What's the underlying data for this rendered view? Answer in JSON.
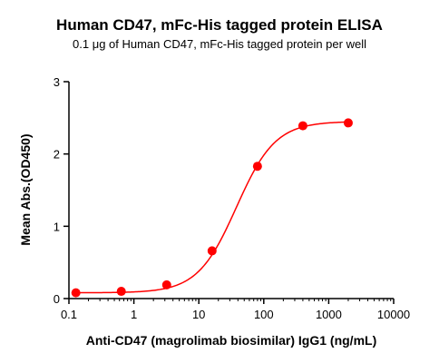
{
  "chart_data": {
    "type": "scatter",
    "title": "Human CD47, mFc-His tagged protein ELISA",
    "subtitle": "0.1 μg of Human CD47, mFc-His tagged protein per well",
    "xlabel": "Anti-CD47 (magrolimab biosimilar) IgG1 (ng/mL)",
    "ylabel": "Mean Abs.(OD450)",
    "x_scale": "log",
    "xlim": [
      0.1,
      10000
    ],
    "ylim": [
      0,
      3
    ],
    "x_ticks": [
      0.1,
      1,
      10,
      100,
      1000,
      10000
    ],
    "x_tick_labels": [
      "0.1",
      "1",
      "10",
      "100",
      "1000",
      "10000"
    ],
    "y_ticks": [
      0,
      1,
      2,
      3
    ],
    "y_tick_labels": [
      "0",
      "1",
      "2",
      "3"
    ],
    "grid": false,
    "color": "#ff0000",
    "series": [
      {
        "x": [
          0.128,
          0.64,
          3.2,
          16,
          80,
          400,
          2000
        ],
        "y": [
          0.08,
          0.1,
          0.19,
          0.66,
          1.83,
          2.39,
          2.43
        ],
        "fit": "4PL"
      }
    ],
    "fit_params": {
      "bottom": 0.08,
      "top": 2.45,
      "ec50": 38,
      "hill": 1.45
    }
  }
}
